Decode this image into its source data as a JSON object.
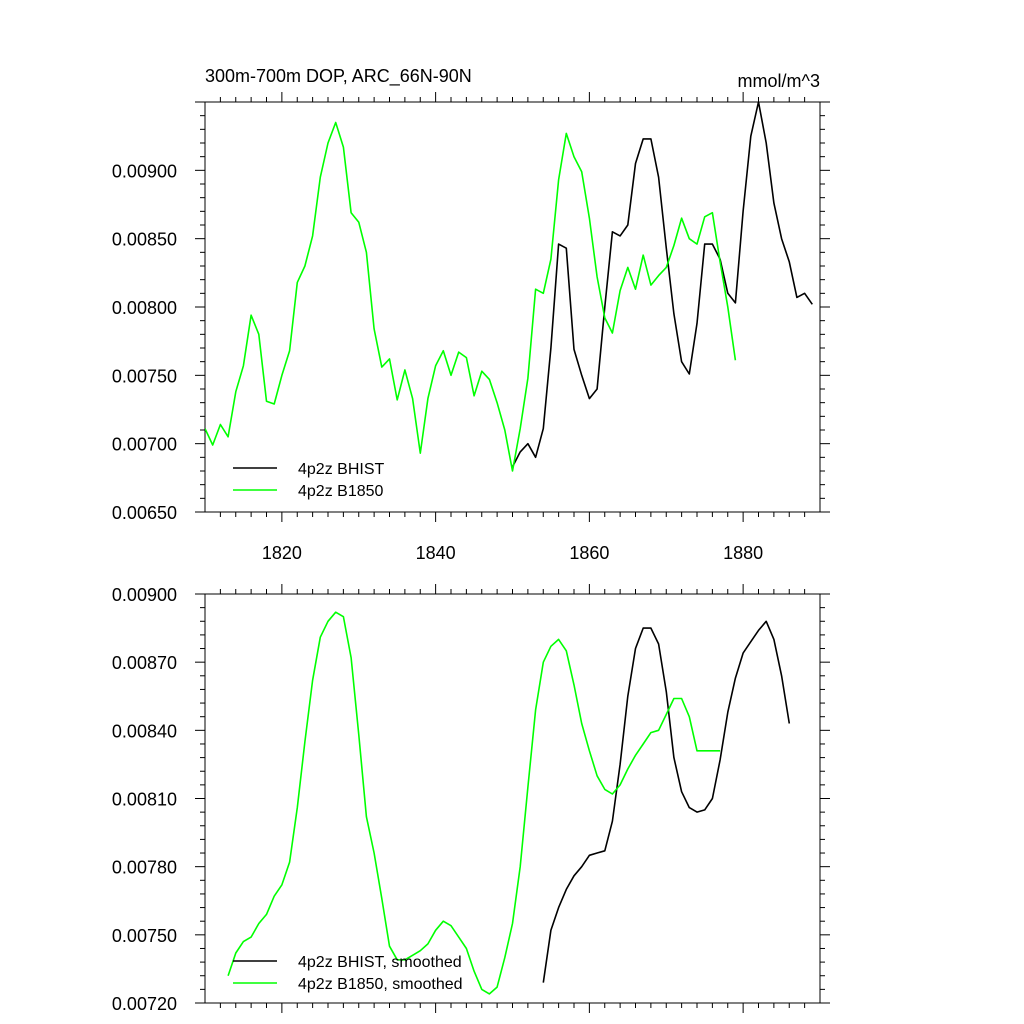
{
  "chart_data": [
    {
      "type": "line",
      "title": "300m-700m DOP, ARC_66N-90N",
      "units": "mmol/m^3",
      "xlim": [
        1810,
        1890
      ],
      "ylim": [
        0.0065,
        0.0095
      ],
      "xticks": [
        1820,
        1840,
        1860,
        1880
      ],
      "yticks": [
        0.0065,
        0.007,
        0.0075,
        0.008,
        0.0085,
        0.009
      ],
      "ytick_labels": [
        "0.00650",
        "0.00700",
        "0.00750",
        "0.00800",
        "0.00850",
        "0.00900"
      ],
      "legend_position": "bottom-left",
      "series": [
        {
          "name": "4p2z BHIST",
          "color": "#000000",
          "x": [
            1850,
            1851,
            1852,
            1853,
            1854,
            1855,
            1856,
            1857,
            1858,
            1859,
            1860,
            1861,
            1862,
            1863,
            1864,
            1865,
            1866,
            1867,
            1868,
            1869,
            1870,
            1871,
            1872,
            1873,
            1874,
            1875,
            1876,
            1877,
            1878,
            1879,
            1880,
            1881,
            1882,
            1883,
            1884,
            1885,
            1886,
            1887,
            1888,
            1889
          ],
          "y": [
            0.00683,
            0.00694,
            0.007,
            0.0069,
            0.00711,
            0.0077,
            0.00846,
            0.00843,
            0.00769,
            0.0075,
            0.00733,
            0.0074,
            0.008,
            0.00855,
            0.00852,
            0.0086,
            0.00905,
            0.00923,
            0.00923,
            0.00895,
            0.00843,
            0.00795,
            0.0076,
            0.00751,
            0.00788,
            0.00846,
            0.00846,
            0.00835,
            0.0081,
            0.00803,
            0.0087,
            0.00925,
            0.0095,
            0.0092,
            0.00876,
            0.0085,
            0.00833,
            0.00807,
            0.0081,
            0.00802
          ]
        },
        {
          "name": "4p2z B1850",
          "color": "#00ff00",
          "x": [
            1810,
            1811,
            1812,
            1813,
            1814,
            1815,
            1816,
            1817,
            1818,
            1819,
            1820,
            1821,
            1822,
            1823,
            1824,
            1825,
            1826,
            1827,
            1828,
            1829,
            1830,
            1831,
            1832,
            1833,
            1834,
            1835,
            1836,
            1837,
            1838,
            1839,
            1840,
            1841,
            1842,
            1843,
            1844,
            1845,
            1846,
            1847,
            1848,
            1849,
            1850,
            1851,
            1852,
            1853,
            1854,
            1855,
            1856,
            1857,
            1858,
            1859,
            1860,
            1861,
            1862,
            1863,
            1864,
            1865,
            1866,
            1867,
            1868,
            1869,
            1870,
            1871,
            1872,
            1873,
            1874,
            1875,
            1876,
            1877,
            1878,
            1879
          ],
          "y": [
            0.00711,
            0.00699,
            0.00714,
            0.00705,
            0.00738,
            0.00757,
            0.00794,
            0.0078,
            0.00731,
            0.00729,
            0.0075,
            0.00768,
            0.00818,
            0.0083,
            0.00852,
            0.00895,
            0.0092,
            0.00935,
            0.00917,
            0.00869,
            0.00862,
            0.0084,
            0.00784,
            0.00756,
            0.00762,
            0.00732,
            0.00754,
            0.00733,
            0.00693,
            0.00733,
            0.00757,
            0.00768,
            0.0075,
            0.00767,
            0.00763,
            0.00735,
            0.00753,
            0.00747,
            0.0073,
            0.0071,
            0.0068,
            0.00711,
            0.00748,
            0.00813,
            0.0081,
            0.00835,
            0.00893,
            0.00927,
            0.0091,
            0.00899,
            0.00865,
            0.00822,
            0.00792,
            0.00781,
            0.00812,
            0.00829,
            0.00813,
            0.00838,
            0.00816,
            0.00823,
            0.00829,
            0.00845,
            0.00865,
            0.0085,
            0.00846,
            0.00866,
            0.00869,
            0.00833,
            0.008,
            0.00761
          ]
        }
      ]
    },
    {
      "type": "line",
      "xlim": [
        1810,
        1890
      ],
      "ylim": [
        0.0072,
        0.009
      ],
      "xticks": [
        1820,
        1840,
        1860,
        1880
      ],
      "yticks": [
        0.0072,
        0.0075,
        0.0078,
        0.0081,
        0.0084,
        0.0087,
        0.009
      ],
      "ytick_labels": [
        "0.00720",
        "0.00750",
        "0.00780",
        "0.00810",
        "0.00840",
        "0.00870",
        "0.00900"
      ],
      "legend_position": "bottom-left",
      "series": [
        {
          "name": "4p2z BHIST, smoothed",
          "color": "#000000",
          "x": [
            1854,
            1855,
            1856,
            1857,
            1858,
            1859,
            1860,
            1861,
            1862,
            1863,
            1864,
            1865,
            1866,
            1867,
            1868,
            1869,
            1870,
            1871,
            1872,
            1873,
            1874,
            1875,
            1876,
            1877,
            1878,
            1879,
            1880,
            1881,
            1882,
            1883,
            1884,
            1885,
            1886
          ],
          "y": [
            0.00729,
            0.00752,
            0.00762,
            0.0077,
            0.00776,
            0.0078,
            0.00785,
            0.00786,
            0.00787,
            0.008,
            0.00825,
            0.00855,
            0.00876,
            0.00885,
            0.00885,
            0.00878,
            0.00857,
            0.00828,
            0.00813,
            0.00806,
            0.00804,
            0.00805,
            0.0081,
            0.00827,
            0.00848,
            0.00863,
            0.00874,
            0.00879,
            0.00884,
            0.00888,
            0.0088,
            0.00864,
            0.00843
          ]
        },
        {
          "name": "4p2z B1850, smoothed",
          "color": "#00ff00",
          "x": [
            1813,
            1814,
            1815,
            1816,
            1817,
            1818,
            1819,
            1820,
            1821,
            1822,
            1823,
            1824,
            1825,
            1826,
            1827,
            1828,
            1829,
            1830,
            1831,
            1832,
            1833,
            1834,
            1835,
            1836,
            1837,
            1838,
            1839,
            1840,
            1841,
            1842,
            1843,
            1844,
            1845,
            1846,
            1847,
            1848,
            1849,
            1850,
            1851,
            1852,
            1853,
            1854,
            1855,
            1856,
            1857,
            1858,
            1859,
            1860,
            1861,
            1862,
            1863,
            1864,
            1865,
            1866,
            1867,
            1868,
            1869,
            1870,
            1871,
            1872,
            1873,
            1874,
            1875,
            1876,
            1877
          ],
          "y": [
            0.00732,
            0.00742,
            0.00747,
            0.00749,
            0.00755,
            0.00759,
            0.00767,
            0.00772,
            0.00782,
            0.00806,
            0.00835,
            0.00862,
            0.00881,
            0.00888,
            0.00892,
            0.0089,
            0.00872,
            0.00838,
            0.00802,
            0.00786,
            0.00766,
            0.00745,
            0.00739,
            0.00739,
            0.00741,
            0.00743,
            0.00746,
            0.00752,
            0.00756,
            0.00754,
            0.00749,
            0.00744,
            0.00734,
            0.00726,
            0.00724,
            0.00727,
            0.0074,
            0.00755,
            0.0078,
            0.00815,
            0.00849,
            0.0087,
            0.00877,
            0.0088,
            0.00875,
            0.0086,
            0.00843,
            0.00831,
            0.0082,
            0.00814,
            0.00812,
            0.00816,
            0.00823,
            0.00829,
            0.00834,
            0.00839,
            0.0084,
            0.00847,
            0.00854,
            0.00854,
            0.00846,
            0.00831,
            0.00831,
            0.00831,
            0.00831
          ]
        }
      ]
    }
  ]
}
